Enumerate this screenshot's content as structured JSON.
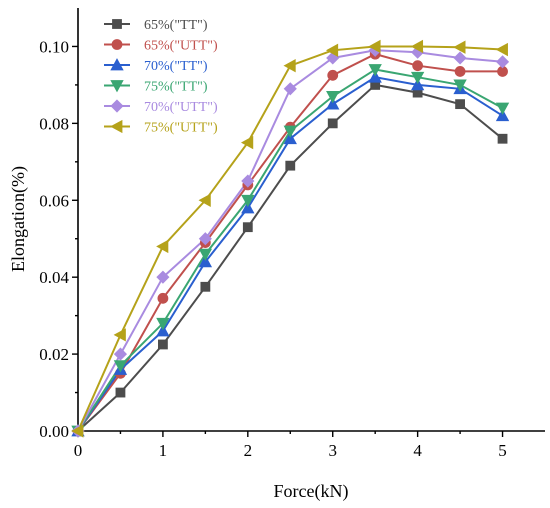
{
  "chart_data": {
    "type": "line",
    "title": "",
    "xlabel": "Force(kN)",
    "ylabel": "Elongation(%)",
    "xlim": [
      0,
      5.5
    ],
    "ylim": [
      0,
      0.11
    ],
    "xticks": [
      0,
      1,
      2,
      3,
      4,
      5
    ],
    "xtick_labels": [
      "0",
      "1",
      "2",
      "3",
      "4",
      "5"
    ],
    "yticks": [
      0,
      0.02,
      0.04,
      0.06,
      0.08,
      0.1
    ],
    "ytick_labels": [
      "0.00",
      "0.02",
      "0.04",
      "0.06",
      "0.08",
      "0.10"
    ],
    "grid": false,
    "legend_position": "top-left",
    "x": [
      0,
      0.5,
      1,
      1.5,
      2,
      2.5,
      3,
      3.5,
      4,
      4.5,
      5
    ],
    "series": [
      {
        "name": "65%(\"TT\")",
        "color": "#4d4d4d",
        "marker": "square",
        "values": [
          0,
          0.01,
          0.0225,
          0.0375,
          0.053,
          0.069,
          0.08,
          0.09,
          0.088,
          0.085,
          0.076
        ]
      },
      {
        "name": "65%(\"UTT\")",
        "color": "#c0504d",
        "marker": "circle",
        "values": [
          0,
          0.015,
          0.0345,
          0.049,
          0.064,
          0.079,
          0.0925,
          0.098,
          0.095,
          0.0935,
          0.0935
        ]
      },
      {
        "name": "70%(\"TT\")",
        "color": "#2a5fcf",
        "marker": "triangle-up",
        "values": [
          0,
          0.016,
          0.026,
          0.044,
          0.058,
          0.076,
          0.085,
          0.092,
          0.09,
          0.089,
          0.082
        ]
      },
      {
        "name": "75%(\"TT\")",
        "color": "#3aa672",
        "marker": "triangle-down",
        "values": [
          0,
          0.017,
          0.028,
          0.046,
          0.06,
          0.078,
          0.087,
          0.094,
          0.092,
          0.09,
          0.084
        ]
      },
      {
        "name": "70%(\"UTT\")",
        "color": "#a98be0",
        "marker": "diamond",
        "values": [
          0,
          0.02,
          0.04,
          0.05,
          0.065,
          0.089,
          0.097,
          0.099,
          0.0985,
          0.097,
          0.096
        ]
      },
      {
        "name": "75%(\"UTT\")",
        "color": "#b5a21a",
        "marker": "triangle-left",
        "values": [
          0,
          0.025,
          0.048,
          0.06,
          0.075,
          0.095,
          0.099,
          0.1,
          0.1,
          0.0998,
          0.0992
        ]
      }
    ]
  }
}
